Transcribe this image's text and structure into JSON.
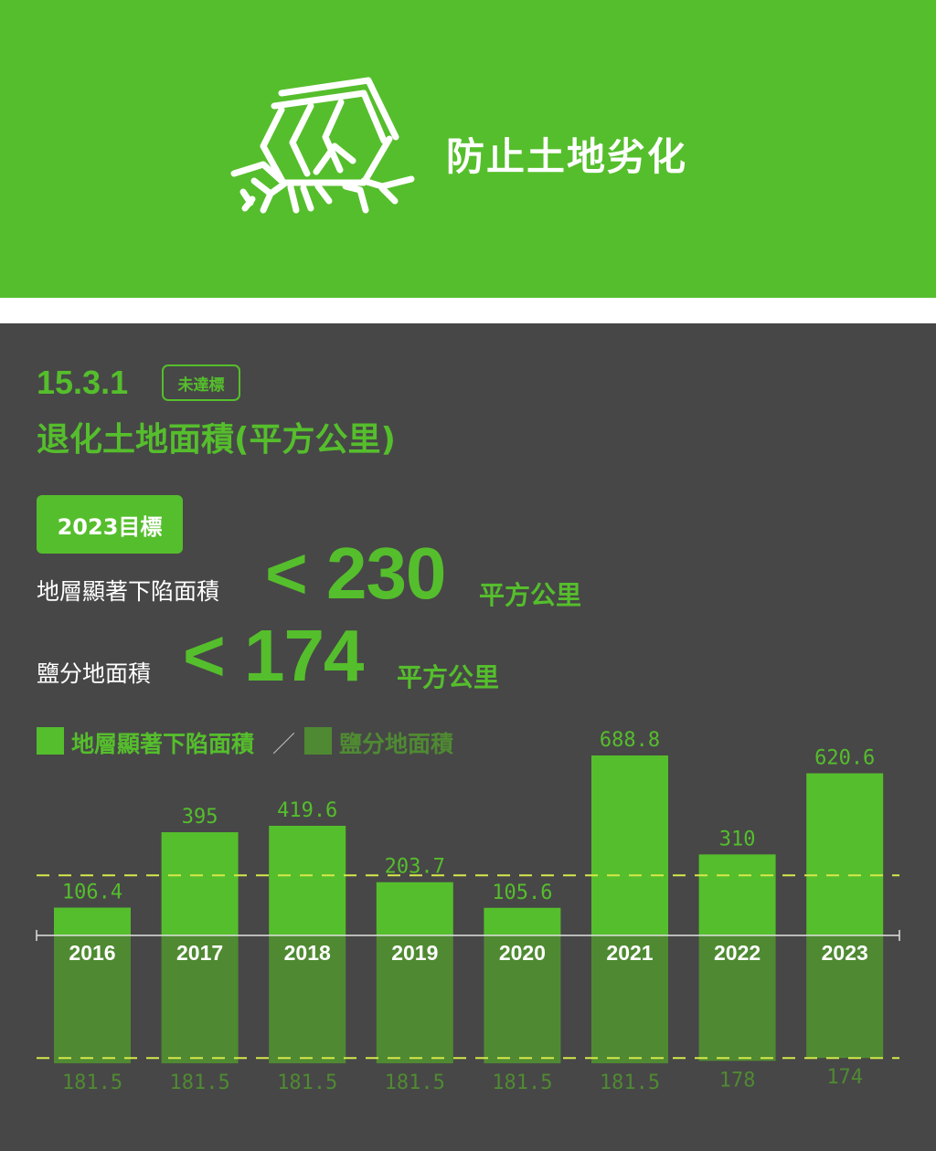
{
  "header": {
    "title": "防止土地劣化",
    "icon": "collapsing-house-icon",
    "color": "#55be2c"
  },
  "indicator": {
    "code": "15.3.1",
    "status": "未達標",
    "title": "退化土地面積(平方公里)"
  },
  "target": {
    "badge": "2023目標",
    "items": [
      {
        "label": "地層顯著下陷面積",
        "value": "< 230",
        "unit": "平方公里"
      },
      {
        "label": "鹽分地面積",
        "value": "< 174",
        "unit": "平方公里"
      }
    ]
  },
  "legend": {
    "subsidence_label": "地層顯著下陷面積",
    "separator": "／",
    "salinity_label": "鹽分地面積"
  },
  "chart_data": {
    "type": "bar",
    "categories": [
      "2016",
      "2017",
      "2018",
      "2019",
      "2020",
      "2021",
      "2022",
      "2023"
    ],
    "series": [
      {
        "name": "地層顯著下陷面積",
        "values": [
          106.4,
          395,
          419.6,
          203.7,
          105.6,
          688.8,
          310,
          620.6
        ],
        "labels": [
          "106.4",
          "395",
          "419.6",
          "203.7",
          "105.6",
          "688.8",
          "310",
          "620.6"
        ],
        "color": "#55be2c",
        "direction": "up"
      },
      {
        "name": "鹽分地面積",
        "values": [
          181.5,
          181.5,
          181.5,
          181.5,
          181.5,
          181.5,
          178,
          174
        ],
        "labels": [
          "181.5",
          "181.5",
          "181.5",
          "181.5",
          "181.5",
          "181.5",
          "178",
          "174"
        ],
        "color": "#4f8a32",
        "direction": "down"
      }
    ],
    "targets": [
      {
        "series": "地層顯著下陷面積",
        "value": 230
      },
      {
        "series": "鹽分地面積",
        "value": 174
      }
    ],
    "colors": {
      "subsidence": "#55be2c",
      "salinity": "#4f8a32",
      "target_line": "#d6e84a",
      "axis": "#e0e0e0"
    }
  }
}
